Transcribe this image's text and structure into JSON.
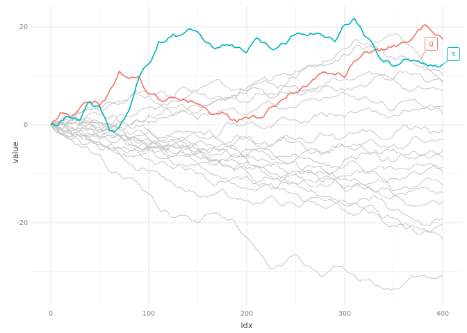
{
  "chart_data": {
    "type": "line",
    "title": "",
    "xlabel": "idx",
    "ylabel": "value",
    "x_ticks": [
      0,
      100,
      200,
      300,
      400
    ],
    "x_minor_ticks": [
      50,
      150,
      250,
      350
    ],
    "y_ticks": [
      20,
      0,
      -20
    ],
    "y_minor_ticks": [
      10,
      -10,
      -30
    ],
    "xlim": [
      0,
      400
    ],
    "ylim": [
      -34,
      22
    ],
    "grid": true,
    "legend_position": "labels at right end of highlighted lines",
    "highlighted_series": [
      {
        "name": "g",
        "color": "#F3766D",
        "idx_step": 10,
        "values": [
          0,
          2.5,
          1.5,
          3.5,
          4.7,
          4.0,
          7.0,
          11.0,
          9.5,
          10.0,
          6.3,
          5.2,
          5.5,
          5.3,
          4.6,
          4.3,
          3.0,
          2.3,
          2.2,
          0.6,
          1.5,
          1.4,
          2.6,
          3.8,
          5.4,
          6.6,
          7.8,
          9.4,
          10.8,
          10.2,
          9.7,
          13.1,
          14.9,
          15.3,
          15.3,
          16.3,
          16.9,
          17.9,
          20.3,
          18.9,
          17.5
        ]
      },
      {
        "name": "s",
        "color": "#00B7BE",
        "idx_step": 10,
        "values": [
          0,
          0.8,
          1.5,
          1.0,
          4.8,
          3.8,
          -1.2,
          -0.5,
          3.0,
          9.6,
          12.5,
          17.0,
          17.8,
          18.2,
          19.5,
          19.0,
          16.8,
          15.8,
          16.4,
          15.8,
          14.8,
          17.8,
          16.6,
          15.6,
          16.5,
          18.5,
          18.4,
          18.6,
          17.8,
          17.0,
          20.5,
          21.8,
          18.2,
          16.0,
          12.9,
          12.0,
          13.4,
          13.2,
          12.6,
          12.0,
          12.4
        ]
      }
    ],
    "background_series": {
      "name": "unlabeled random walks",
      "color": "#C9C9C9",
      "idx_step": 25,
      "walks": [
        [
          0,
          1.5,
          3,
          4.5,
          6,
          5,
          6.5,
          5.5,
          7.5,
          9,
          11,
          12.5,
          14.5,
          16,
          18.5,
          14.5,
          10.3
        ],
        [
          0,
          -1.5,
          0.5,
          2,
          3.5,
          2,
          4,
          5.5,
          4.5,
          6.5,
          8,
          7,
          9.5,
          11,
          9.5,
          10.5,
          9
        ],
        [
          0,
          0.5,
          -1,
          0.5,
          2,
          3.5,
          2.5,
          5,
          6.5,
          8.5,
          9.5,
          12,
          15.5,
          16.5,
          13.5,
          12,
          8.6
        ],
        [
          0,
          2,
          3.5,
          5,
          6.5,
          5.5,
          7,
          8.5,
          7,
          5.5,
          6.5,
          8,
          7,
          8.5,
          9.5,
          8,
          7
        ],
        [
          0,
          -1,
          -2.5,
          -1,
          0.5,
          2,
          1,
          3,
          2,
          4.5,
          3.5,
          5,
          6.5,
          5,
          3,
          4.5,
          3.7
        ],
        [
          0,
          1.5,
          0,
          -1.5,
          -3,
          -1.5,
          -2.5,
          -1,
          0.5,
          -0.5,
          1,
          2.5,
          1.5,
          3.5,
          2,
          3,
          2.3
        ],
        [
          0,
          -2,
          -3.5,
          -2,
          -4,
          -3,
          -5,
          -4,
          -2.5,
          -4,
          -3,
          -1.5,
          -2.5,
          -1,
          -2,
          -0.5,
          -1
        ],
        [
          0,
          0.5,
          2,
          0.5,
          -1,
          -2.5,
          -1.5,
          -3.5,
          -2.5,
          -4.5,
          -3.5,
          -5.5,
          -4.5,
          -3,
          -4,
          -2.5,
          -3
        ],
        [
          0,
          -1,
          0.5,
          -1.5,
          -3,
          -4.5,
          -3.5,
          -5,
          -6.5,
          -5.5,
          -7,
          -6,
          -4.5,
          -6,
          -5,
          -6.5,
          -5.2
        ],
        [
          0,
          1,
          -0.5,
          -2,
          -1,
          -3,
          -4.5,
          -6,
          -5,
          -7,
          -6,
          -8,
          -7,
          -5.5,
          -7.5,
          -6,
          -6.7
        ],
        [
          0,
          -2.5,
          -1.5,
          -3.5,
          -5,
          -4,
          -6,
          -5,
          -7,
          -8.5,
          -7.5,
          -9.5,
          -8.5,
          -10,
          -9,
          -8,
          -8.7
        ],
        [
          0,
          0.5,
          -1.5,
          -3,
          -4.5,
          -6,
          -5,
          -7,
          -6,
          -8,
          -9.5,
          -8.5,
          -10.5,
          -9.5,
          -11,
          -10,
          -9.5
        ],
        [
          0,
          -1.5,
          -3,
          -2,
          -4.5,
          -6.5,
          -8,
          -7,
          -9,
          -10.5,
          -9.5,
          -11.5,
          -13,
          -12,
          -13.5,
          -12.5,
          -12.3
        ],
        [
          0,
          -2,
          -4,
          -5.5,
          -4.5,
          -6.5,
          -5.5,
          -8,
          -9.5,
          -11,
          -10,
          -12,
          -11,
          -13,
          -14.5,
          -13,
          -13.8
        ],
        [
          0,
          1,
          -1,
          -3,
          -5,
          -4,
          -6.5,
          -8.5,
          -7.5,
          -10,
          -12,
          -11,
          -13.5,
          -12.5,
          -14.5,
          -16.5,
          -15.7
        ],
        [
          0,
          -1,
          -3.5,
          -6,
          -5,
          -8,
          -10,
          -11.5,
          -10.5,
          -13,
          -12,
          -14.5,
          -16.5,
          -15.5,
          -17.5,
          -19.5,
          -19
        ],
        [
          0,
          -2.5,
          -5,
          -7,
          -9.5,
          -12,
          -14.5,
          -13,
          -15.5,
          -14.5,
          -16.5,
          -15,
          -17.5,
          -16.5,
          -19,
          -21,
          -20.4
        ],
        [
          0,
          -1,
          -2.5,
          -4.5,
          -7,
          -9,
          -8,
          -11,
          -13,
          -12,
          -14,
          -16.5,
          -15.5,
          -18,
          -20.5,
          -22.5,
          -23.3
        ],
        [
          0,
          -4,
          -6,
          -11,
          -14,
          -19,
          -20,
          -19,
          -23,
          -29.5,
          -26.5,
          -31,
          -29.5,
          -31.5,
          -33.5,
          -31,
          -30.8
        ]
      ]
    },
    "colors": {
      "background": "#FFFFFF",
      "grid_major": "#E4E4E4",
      "grid_minor": "#F1F1F1",
      "axis_tick_text": "#7E7E7E",
      "axis_title_text": "#404040"
    }
  }
}
